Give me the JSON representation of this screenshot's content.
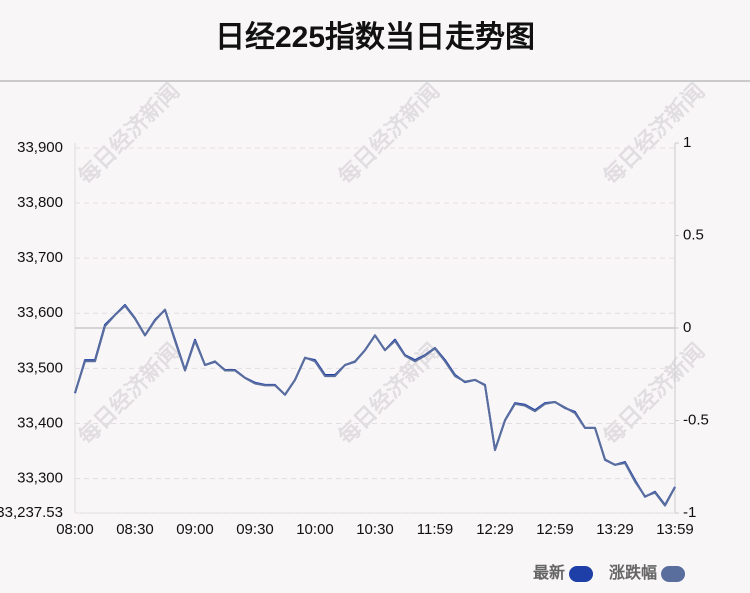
{
  "chart_data": {
    "type": "line",
    "title": "日经225指数当日走势图",
    "watermark": "每日经济新闻",
    "categories": [
      "08:00",
      null,
      null,
      null,
      null,
      null,
      "08:30",
      null,
      null,
      null,
      null,
      null,
      "09:00",
      null,
      null,
      null,
      null,
      null,
      "09:30",
      null,
      null,
      null,
      null,
      null,
      "10:00",
      null,
      null,
      null,
      null,
      null,
      "10:30",
      null,
      null,
      null,
      null,
      null,
      "11:59",
      null,
      null,
      null,
      null,
      null,
      "12:29",
      null,
      null,
      null,
      null,
      null,
      "12:59",
      null,
      null,
      null,
      null,
      null,
      "13:29",
      null,
      null,
      null,
      null,
      null,
      "13:59"
    ],
    "series": [
      {
        "name": "最新",
        "color": "#1e3fa8",
        "axis": "y",
        "values": [
          33455,
          33515,
          33515,
          33579,
          33597,
          33615,
          33591,
          33560,
          33588,
          33606,
          33552,
          33497,
          33552,
          33506,
          33512,
          33497,
          33497,
          33483,
          33474,
          33470,
          33470,
          33452,
          33479,
          33519,
          33515,
          33488,
          33488,
          33506,
          33512,
          33533,
          33560,
          33533,
          33552,
          33524,
          33515,
          33524,
          33537,
          33515,
          33488,
          33475,
          33479,
          33470,
          33352,
          33406,
          33437,
          33434,
          33424,
          33437,
          33439,
          33428,
          33421,
          33392,
          33392,
          33334,
          33325,
          33330,
          33297,
          33267,
          33276,
          33252,
          33285
        ]
      },
      {
        "name": "涨跌幅",
        "color": "#5a6e9e",
        "axis": "y2",
        "values": [
          -0.35,
          -0.18,
          -0.18,
          0.01,
          0.07,
          0.12,
          0.05,
          -0.04,
          0.04,
          0.1,
          -0.07,
          -0.23,
          -0.07,
          -0.2,
          -0.18,
          -0.23,
          -0.23,
          -0.27,
          -0.3,
          -0.31,
          -0.31,
          -0.36,
          -0.28,
          -0.16,
          -0.18,
          -0.26,
          -0.26,
          -0.2,
          -0.18,
          -0.12,
          -0.04,
          -0.12,
          -0.07,
          -0.15,
          -0.18,
          -0.15,
          -0.11,
          -0.18,
          -0.26,
          -0.29,
          -0.28,
          -0.31,
          -0.66,
          -0.5,
          -0.41,
          -0.42,
          -0.45,
          -0.41,
          -0.4,
          -0.43,
          -0.46,
          -0.54,
          -0.54,
          -0.71,
          -0.74,
          -0.73,
          -0.83,
          -0.91,
          -0.89,
          -0.96,
          -0.86
        ]
      }
    ],
    "ylim": [
      33237.53,
      33909
    ],
    "yticks": [
      {
        "value": 33237.53,
        "label": "33,237.53"
      },
      {
        "value": 33300,
        "label": "33,300"
      },
      {
        "value": 33400,
        "label": "33,400"
      },
      {
        "value": 33500,
        "label": "33,500"
      },
      {
        "value": 33600,
        "label": "33,600"
      },
      {
        "value": 33700,
        "label": "33,700"
      },
      {
        "value": 33800,
        "label": "33,800"
      },
      {
        "value": 33900,
        "label": "33,900"
      }
    ],
    "y2lim": [
      -1,
      1
    ],
    "y2ticks": [
      -1,
      -0.5,
      0,
      0.5,
      1
    ],
    "grid": true
  }
}
